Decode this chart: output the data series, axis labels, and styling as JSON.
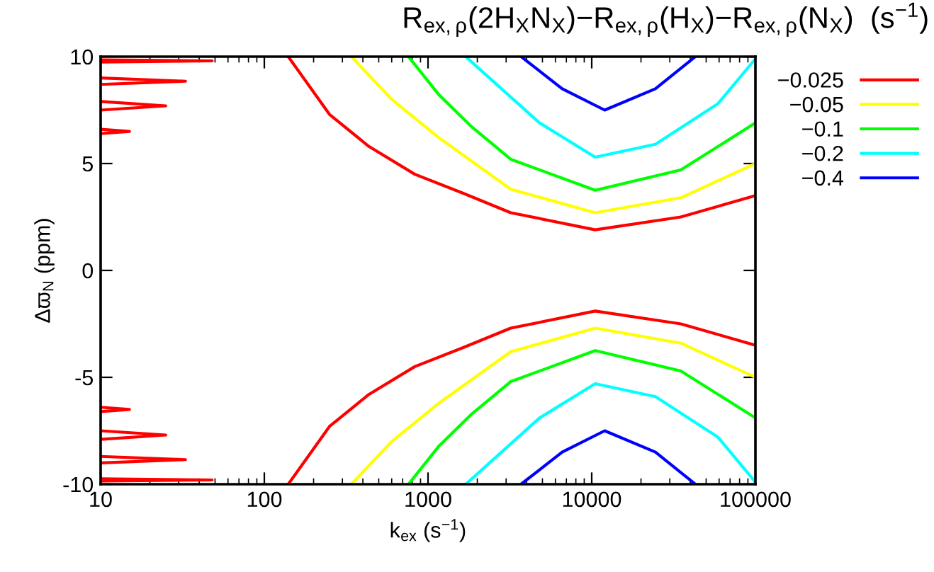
{
  "chart_data": {
    "type": "line",
    "title": "R$_{ex,ρ}$(2H$_{X}$N$_{X}$)−R$_{ex,ρ}$(H$_{X}$)−R$_{ex,ρ}$(N$_{X}$)  (s$^{−1}$)",
    "xlabel": "k$_{ex}$ (s$^{−1}$)",
    "ylabel": "Δϖ$_{N}$ (ppm)",
    "log": "x",
    "xlim": [
      10,
      100000
    ],
    "xticks": [
      10,
      100,
      1000,
      10000,
      100000
    ],
    "ylim": [
      -10,
      10
    ],
    "yticks": [
      {
        "value": -10,
        "label": "-10"
      },
      {
        "value": -5,
        "label": "-5"
      },
      0,
      5,
      10
    ],
    "grid": false,
    "legend": "top right",
    "line_style": "solid",
    "marker": "none",
    "series": [
      {
        "name": "−0.025",
        "color": "#ff0000",
        "x": [
          140,
          170,
          250,
          435,
          830,
          1650,
          3200,
          10500,
          35000,
          100000,
          null,
          140,
          170,
          250,
          435,
          830,
          1650,
          3200,
          10500,
          35000,
          100000,
          null,
          10,
          48,
          10,
          null,
          10,
          33,
          10,
          null,
          10,
          25,
          10,
          null,
          10,
          15,
          10,
          null,
          10,
          48,
          10,
          null,
          10,
          33,
          10,
          null,
          10,
          25,
          10,
          null,
          10,
          15,
          10
        ],
        "values": [
          10,
          9.1,
          7.3,
          5.8,
          4.5,
          3.6,
          2.7,
          1.9,
          2.5,
          3.5,
          null,
          -10,
          -9.1,
          -7.3,
          -5.8,
          -4.5,
          -3.6,
          -2.7,
          -1.9,
          -2.5,
          -3.5,
          null,
          9.85,
          9.8,
          9.75,
          null,
          9.0,
          8.85,
          8.7,
          null,
          7.9,
          7.7,
          7.5,
          null,
          6.6,
          6.5,
          6.4,
          null,
          -9.85,
          -9.8,
          -9.75,
          null,
          -9.0,
          -8.85,
          -8.7,
          null,
          -7.9,
          -7.7,
          -7.5,
          null,
          -6.6,
          -6.5,
          -6.4
        ]
      },
      {
        "name": "−0.05",
        "color": "#ffff00",
        "x": [
          340,
          600,
          1170,
          3200,
          10500,
          35000,
          100000,
          null,
          340,
          600,
          1170,
          3200,
          10500,
          35000,
          100000
        ],
        "values": [
          10,
          8.0,
          6.2,
          3.8,
          2.7,
          3.4,
          5.0,
          null,
          -10,
          -8.0,
          -6.2,
          -3.8,
          -2.7,
          -3.4,
          -5.0
        ]
      },
      {
        "name": "−0.1",
        "color": "#00ff00",
        "x": [
          760,
          1170,
          1860,
          3200,
          10500,
          35000,
          100000,
          null,
          760,
          1170,
          1860,
          3200,
          10500,
          35000,
          100000
        ],
        "values": [
          10,
          8.2,
          6.7,
          5.2,
          3.75,
          4.7,
          6.9,
          null,
          -10,
          -8.2,
          -6.7,
          -5.2,
          -3.75,
          -4.7,
          -6.9
        ]
      },
      {
        "name": "−0.2",
        "color": "#00ffff",
        "x": [
          1700,
          4800,
          10500,
          24500,
          59000,
          100000,
          null,
          1700,
          4800,
          10500,
          24500,
          59000,
          100000
        ],
        "values": [
          10,
          6.9,
          5.3,
          5.9,
          7.8,
          9.9,
          null,
          -10,
          -6.9,
          -5.3,
          -5.9,
          -7.8,
          -9.9
        ]
      },
      {
        "name": "−0.4",
        "color": "#0000ff",
        "x": [
          3700,
          6600,
          12000,
          24500,
          43000,
          null,
          3700,
          6600,
          12000,
          24500,
          43000
        ],
        "values": [
          10,
          8.5,
          7.5,
          8.5,
          10,
          null,
          -10,
          -8.5,
          -7.5,
          -8.5,
          -10
        ]
      }
    ]
  }
}
